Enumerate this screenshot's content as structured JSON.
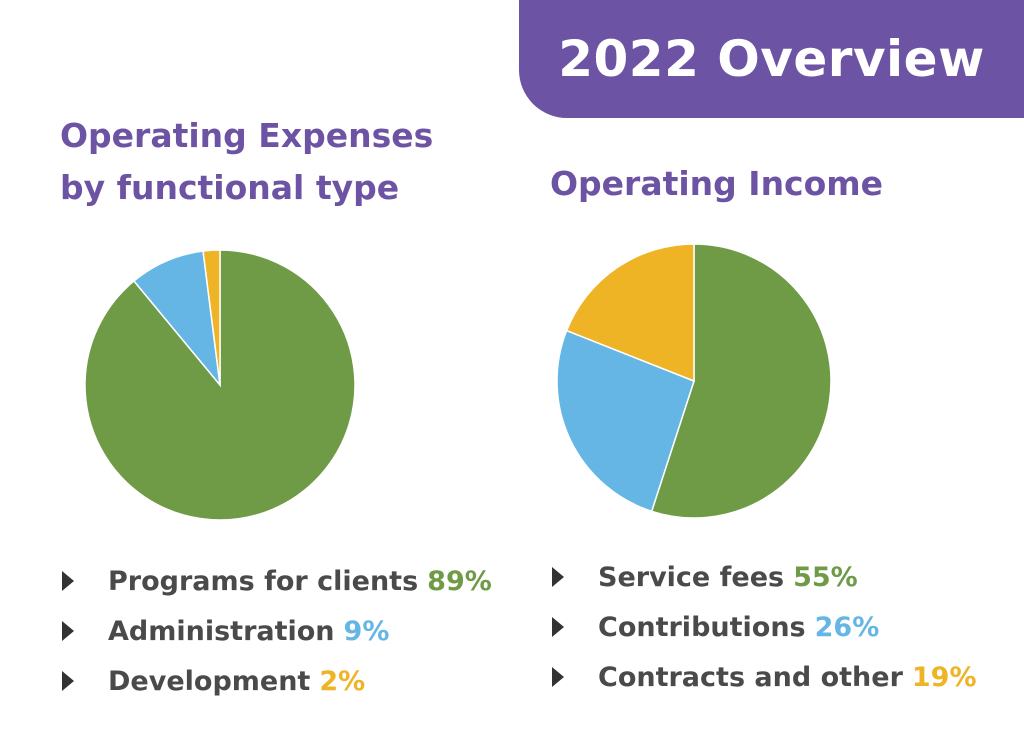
{
  "banner": {
    "title": "2022 Overview",
    "color": "#6d53a3"
  },
  "chart_data": [
    {
      "type": "pie",
      "title_lines": [
        "Operating Expenses",
        "by functional type"
      ],
      "categories": [
        "Programs for clients",
        "Administration",
        "Development"
      ],
      "values": [
        89,
        9,
        2
      ],
      "unit": "%",
      "colors": [
        "#6f9b47",
        "#65b6e5",
        "#eeb426"
      ],
      "start": "12 o'clock, clockwise",
      "legend": "bottom"
    },
    {
      "type": "pie",
      "title_lines": [
        "Operating Income"
      ],
      "categories": [
        "Service fees",
        "Contributions",
        "Contracts and other"
      ],
      "values": [
        55,
        26,
        19
      ],
      "unit": "%",
      "colors": [
        "#6f9b47",
        "#65b6e5",
        "#eeb426"
      ],
      "start": "12 o'clock, clockwise",
      "legend": "bottom"
    }
  ],
  "legend_icon": "triangle-right-bullet-icon"
}
